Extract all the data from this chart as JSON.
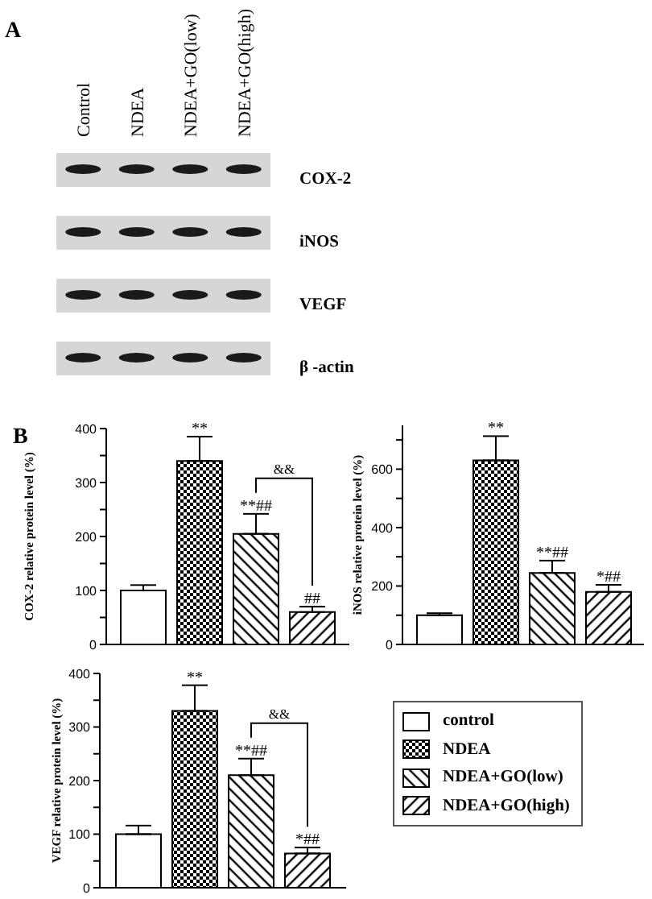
{
  "chart_data": [
    {
      "type": "other",
      "title": "A",
      "categories": [
        "Control",
        "NDEA",
        "NDEA+GO(low)",
        "NDEA+GO(high)"
      ],
      "y_categories": [
        "COX-2",
        "iNOS",
        "VEGF",
        "β -actin"
      ]
    },
    {
      "type": "bar",
      "title": "B",
      "ylabel": "COX-2 relative protein level (%)",
      "categories": [
        null
      ],
      "ylim": [
        0,
        400
      ],
      "yticks": [
        0,
        {
          "value": 50,
          "label": null
        },
        100,
        {
          "value": 150,
          "label": null
        },
        200,
        {
          "value": 250,
          "label": null
        },
        300,
        {
          "value": 350,
          "label": null
        },
        400
      ],
      "series": [
        {
          "color": "#ffffff",
          "values": [
            100
          ],
          "errors": [
            [
              100,
              110
            ]
          ]
        },
        {
          "color": "#000000",
          "values": [
            340
          ],
          "errors": [
            [
              340,
              385
            ]
          ],
          "value_labels": [
            "**"
          ]
        },
        {
          "color": "#000000",
          "values": [
            205
          ],
          "errors": [
            [
              205,
              242
            ]
          ],
          "value_labels": [
            "**##"
          ]
        },
        {
          "color": "#000000",
          "values": [
            60
          ],
          "errors": [
            [
              60,
              70
            ]
          ],
          "value_labels": [
            "##"
          ]
        }
      ],
      "annotations": [
        "&&"
      ]
    },
    {
      "type": "bar",
      "ylabel": "iNOS relative protein level (%)",
      "categories": [
        null
      ],
      "ylim": [
        0,
        750
      ],
      "yticks": [
        0,
        {
          "value": 100,
          "label": null
        },
        200,
        {
          "value": 300,
          "label": null
        },
        400,
        {
          "value": 500,
          "label": null
        },
        600,
        {
          "value": 700,
          "label": null
        }
      ],
      "series": [
        {
          "color": "#ffffff",
          "values": [
            100
          ],
          "errors": [
            [
              100,
              107
            ]
          ]
        },
        {
          "color": "#000000",
          "values": [
            630
          ],
          "errors": [
            [
              630,
              713
            ]
          ],
          "value_labels": [
            "**"
          ]
        },
        {
          "color": "#000000",
          "values": [
            245
          ],
          "errors": [
            [
              245,
              287
            ]
          ],
          "value_labels": [
            "**##"
          ]
        },
        {
          "color": "#000000",
          "values": [
            180
          ],
          "errors": [
            [
              180,
              204
            ]
          ],
          "value_labels": [
            "*##"
          ]
        }
      ]
    },
    {
      "type": "bar",
      "ylabel": "VEGF relative protein level (%)",
      "categories": [
        null
      ],
      "ylim": [
        0,
        400
      ],
      "yticks": [
        0,
        {
          "value": 50,
          "label": null
        },
        100,
        {
          "value": 150,
          "label": null
        },
        200,
        {
          "value": 250,
          "label": null
        },
        300,
        {
          "value": 350,
          "label": null
        },
        400
      ],
      "legend": "right",
      "series": [
        {
          "name": "control",
          "color": "#ffffff",
          "values": [
            100
          ],
          "errors": [
            [
              100,
              116
            ]
          ]
        },
        {
          "name": "NDEA",
          "color": "#000000",
          "values": [
            330
          ],
          "errors": [
            [
              330,
              378
            ]
          ],
          "value_labels": [
            "**"
          ]
        },
        {
          "name": "NDEA+GO(low)",
          "color": "#000000",
          "values": [
            210
          ],
          "errors": [
            [
              210,
              241
            ]
          ],
          "value_labels": [
            "**##"
          ]
        },
        {
          "name": "NDEA+GO(high)",
          "color": "#000000",
          "values": [
            64
          ],
          "errors": [
            [
              64,
              75
            ]
          ],
          "value_labels": [
            "*##"
          ]
        }
      ],
      "annotations": [
        "&&"
      ]
    }
  ]
}
